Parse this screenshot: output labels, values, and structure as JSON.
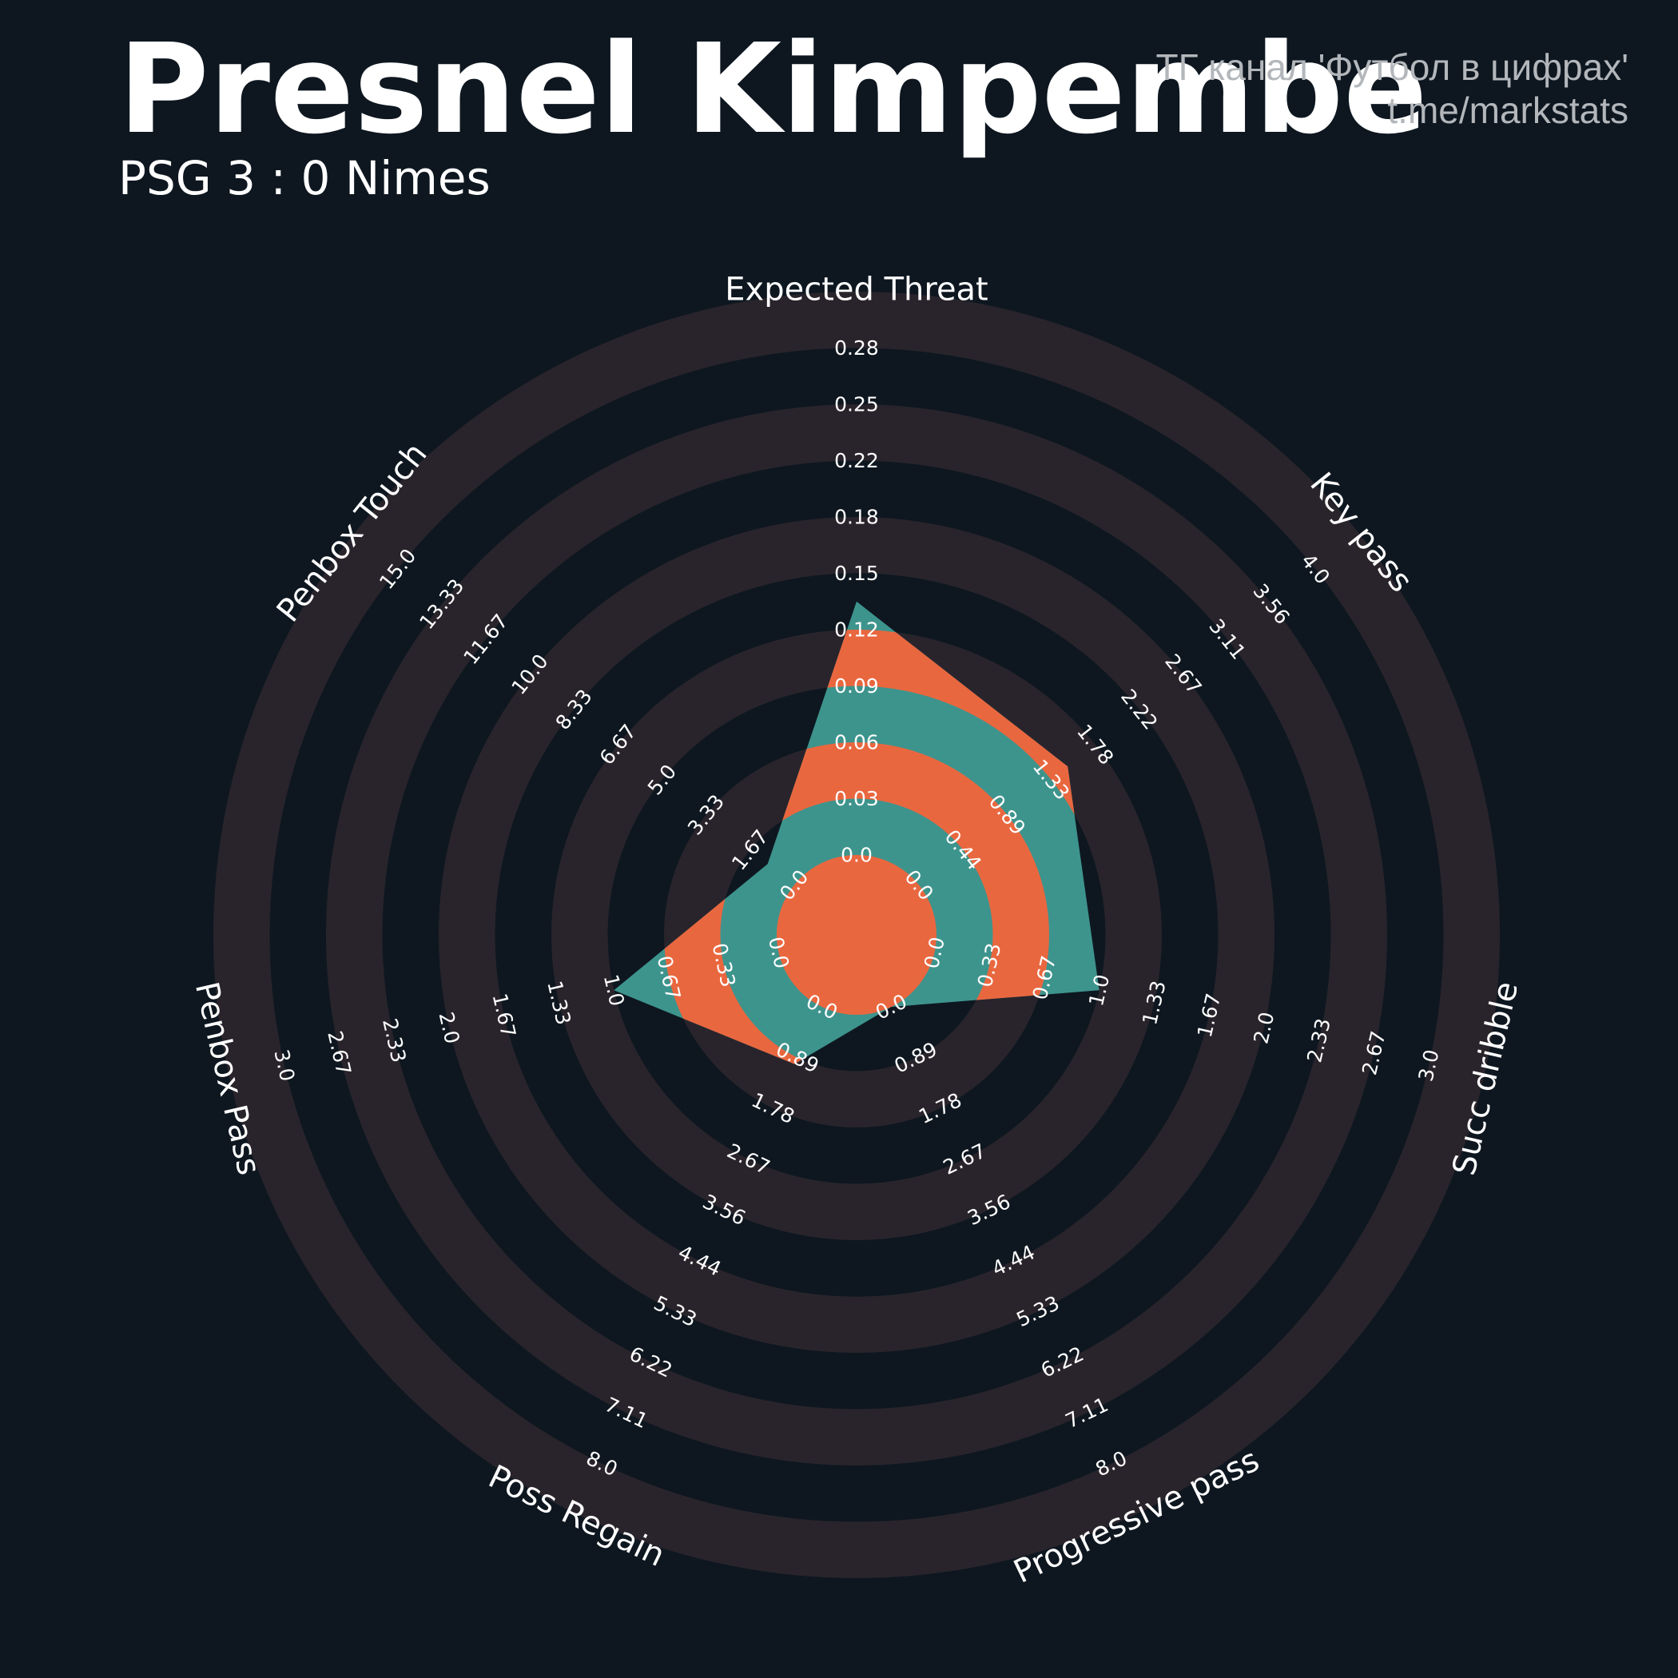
{
  "header": {
    "title": "Presnel Kimpembe",
    "subtitle": "PSG 3 : 0 Nimes",
    "credit_line1": "ТГ канал 'Футбол в цифрах'",
    "credit_line2": "t.me/markstats"
  },
  "colors": {
    "background": "#0e1720",
    "ring_band": "#29242b",
    "shape_teal": "#3d948d",
    "shape_orange": "#e9673f",
    "text": "#ffffff",
    "credit": "#b3b7bb"
  },
  "chart_data": {
    "type": "radar",
    "title": "Presnel Kimpembe",
    "subtitle": "PSG 3 : 0 Nimes",
    "axes": [
      {
        "name": "Expected Threat",
        "value": 0.14,
        "min": 0.0,
        "max": 0.28,
        "ticks": [
          "0.0",
          "0.03",
          "0.06",
          "0.09",
          "0.12",
          "0.15",
          "0.18",
          "0.22",
          "0.25",
          "0.28"
        ]
      },
      {
        "name": "Key pass",
        "value": 1.5,
        "min": 0.0,
        "max": 4.0,
        "ticks": [
          "0.0",
          "0.44",
          "0.89",
          "1.33",
          "1.78",
          "2.22",
          "2.67",
          "3.11",
          "3.56",
          "4.0"
        ]
      },
      {
        "name": "Succ dribble",
        "value": 1.0,
        "min": 0.0,
        "max": 3.0,
        "ticks": [
          "0.0",
          "0.33",
          "0.67",
          "1.0",
          "1.33",
          "1.67",
          "2.0",
          "2.33",
          "2.67",
          "3.0"
        ]
      },
      {
        "name": "Progressive pass",
        "value": 0.0,
        "min": 0.0,
        "max": 8.0,
        "ticks": [
          "0.0",
          "0.89",
          "1.78",
          "2.67",
          "3.56",
          "4.44",
          "5.33",
          "6.22",
          "7.11",
          "8.0"
        ]
      },
      {
        "name": "Poss Regain",
        "value": 1.0,
        "min": 0.0,
        "max": 8.0,
        "ticks": [
          "0.0",
          "0.89",
          "1.78",
          "2.67",
          "3.56",
          "4.44",
          "5.33",
          "6.22",
          "7.11",
          "8.0"
        ]
      },
      {
        "name": "Penbox Pass",
        "value": 1.0,
        "min": 0.0,
        "max": 3.0,
        "ticks": [
          "0.0",
          "0.33",
          "0.67",
          "1.0",
          "1.33",
          "1.67",
          "2.0",
          "2.33",
          "2.67",
          "3.0"
        ]
      },
      {
        "name": "Penbox Touch",
        "value": 1.0,
        "min": 0.0,
        "max": 15.0,
        "ticks": [
          "0.0",
          "1.67",
          "3.33",
          "5.0",
          "6.67",
          "8.33",
          "10.0",
          "11.67",
          "13.33",
          "15.0"
        ]
      }
    ]
  }
}
